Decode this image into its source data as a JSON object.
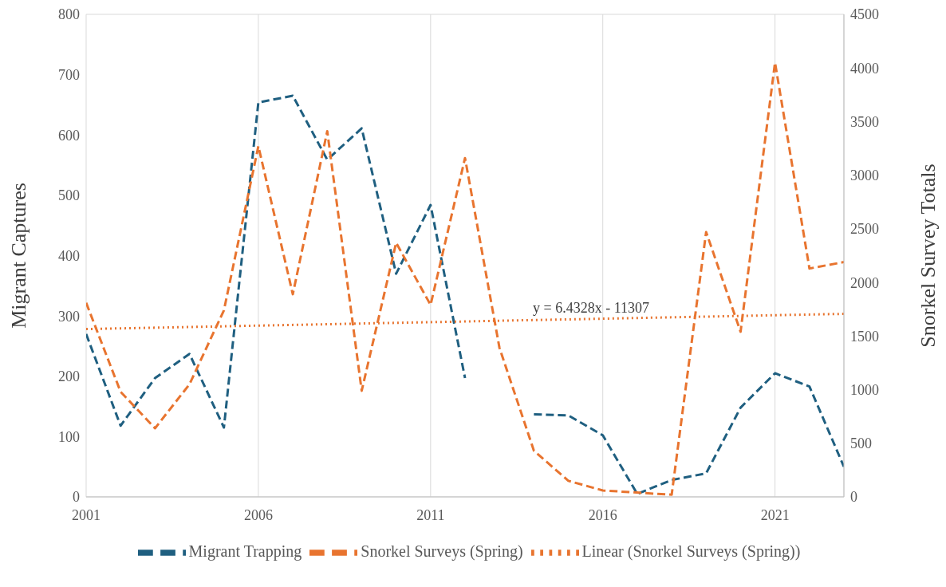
{
  "chart_data": {
    "type": "line",
    "xlabel": null,
    "ylabel": "Migrant Captures",
    "y2label": "Snorkel Survey Totals",
    "x": [
      2001,
      2002,
      2003,
      2004,
      2005,
      2006,
      2007,
      2008,
      2009,
      2010,
      2011,
      2012,
      2013,
      2014,
      2015,
      2016,
      2017,
      2018,
      2019,
      2020,
      2021,
      2022,
      2023
    ],
    "series": [
      {
        "name": "Migrant Trapping",
        "color": "#1f5f80",
        "line_style": "dashed",
        "values": [
          270,
          118,
          197,
          237,
          115,
          654,
          665,
          559,
          611,
          370,
          484,
          197,
          null,
          137,
          135,
          102,
          5,
          28,
          39,
          148,
          205,
          183,
          50
        ]
      },
      {
        "name": "Snorkel Surveys (Spring)",
        "color": "#e8742f",
        "line_style": "dashed",
        "axis": "y2",
        "values": [
          1810,
          980,
          640,
          1050,
          1740,
          3270,
          1890,
          3410,
          990,
          2370,
          1790,
          3160,
          1390,
          430,
          150,
          60,
          40,
          20,
          2470,
          1540,
          4050,
          2130,
          2190
        ]
      },
      {
        "name": "Linear (Snorkel Surveys (Spring))",
        "color": "#e8742f",
        "line_style": "dotted",
        "axis": "y2",
        "x": [
          2001,
          2023
        ],
        "values": [
          1565,
          1707
        ]
      }
    ],
    "annotations": [
      "y = 6.4328x - 11307"
    ],
    "xlim": [
      2001,
      2023
    ],
    "xticks": [
      2001,
      2006,
      2011,
      2016,
      2021
    ],
    "ylim": [
      0,
      800
    ],
    "yticks": [
      0,
      100,
      200,
      300,
      400,
      500,
      600,
      700,
      800
    ],
    "y2lim": [
      0,
      4500
    ],
    "y2ticks": [
      0,
      500,
      1000,
      1500,
      2000,
      2500,
      3000,
      3500,
      4000,
      4500
    ],
    "grid": true,
    "legend": "bottom",
    "marker": "none"
  }
}
